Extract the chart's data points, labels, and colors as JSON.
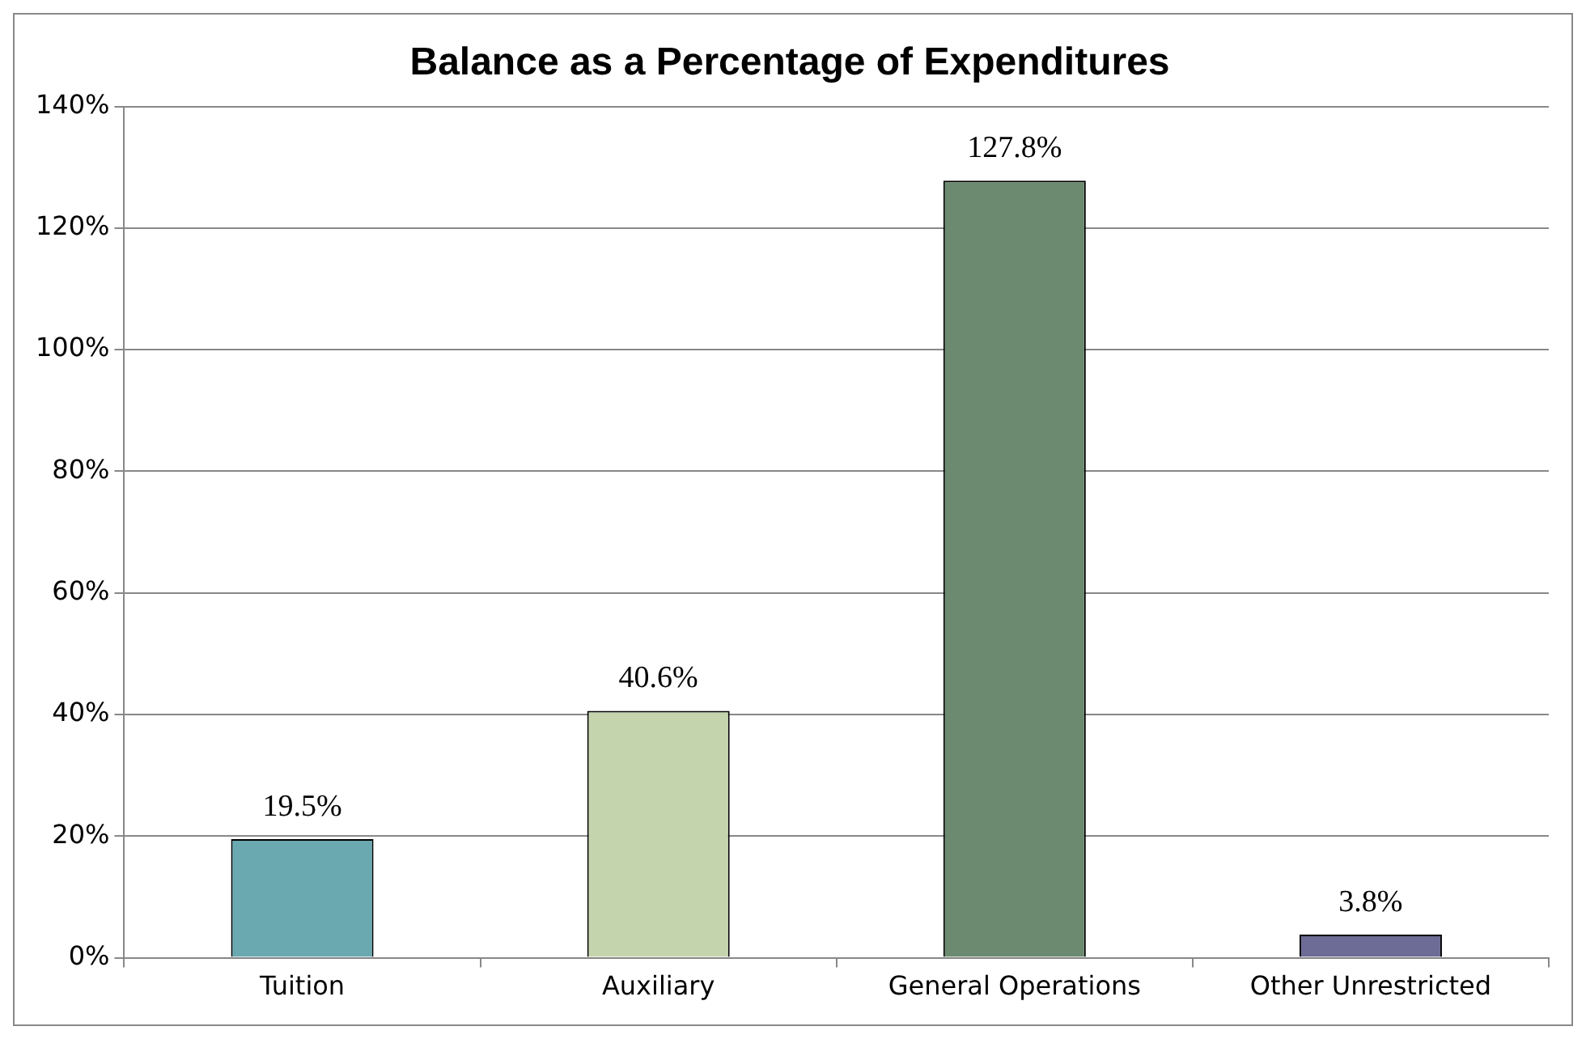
{
  "chart_data": {
    "type": "bar",
    "title": "Balance as a Percentage of Expenditures",
    "categories": [
      "Tuition",
      "Auxiliary",
      "General Operations",
      "Other Unrestricted"
    ],
    "values": [
      19.5,
      40.6,
      127.8,
      3.8
    ],
    "colors": [
      "#6aa9b0",
      "#c4d5ad",
      "#6b8a6f",
      "#6c6c96"
    ],
    "value_labels": [
      "19.5%",
      "40.6%",
      "127.8%",
      "3.8%"
    ],
    "ylim": [
      0,
      140
    ],
    "yticks": [
      {
        "value": 0,
        "label": "0%"
      },
      {
        "value": 20,
        "label": "20%"
      },
      {
        "value": 40,
        "label": "40%"
      },
      {
        "value": 60,
        "label": "60%"
      },
      {
        "value": 80,
        "label": "80%"
      },
      {
        "value": 100,
        "label": "100%"
      },
      {
        "value": 120,
        "label": "120%"
      },
      {
        "value": 140,
        "label": "140%"
      }
    ],
    "grid": "y"
  }
}
